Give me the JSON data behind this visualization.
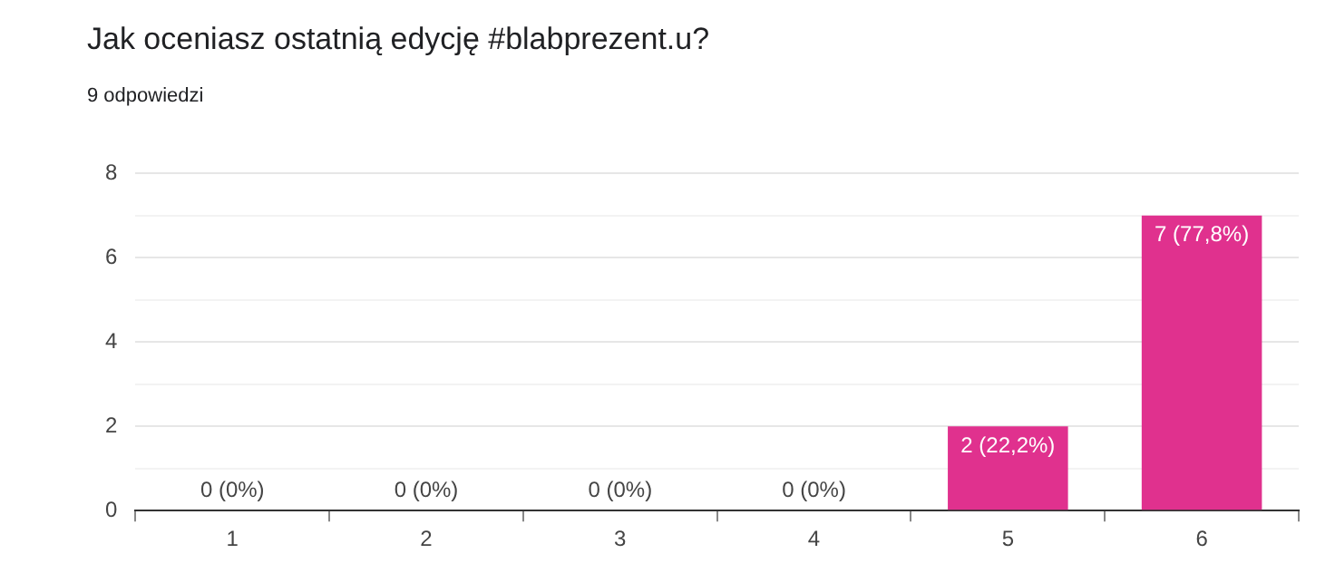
{
  "chart_data": {
    "type": "bar",
    "title": "Jak oceniasz ostatnią edycję #blabprezent.u?",
    "subtitle": "9 odpowiedzi",
    "categories": [
      "1",
      "2",
      "3",
      "4",
      "5",
      "6"
    ],
    "values": [
      0,
      0,
      0,
      0,
      2,
      7
    ],
    "value_labels": [
      "0 (0%)",
      "0 (0%)",
      "0 (0%)",
      "0 (0%)",
      "2 (22,2%)",
      "7 (77,8%)"
    ],
    "color": "#e0318e",
    "ylim": [
      0,
      8
    ],
    "yticks": [
      0,
      {
        "value": 1,
        "label": null
      },
      2,
      {
        "value": 3,
        "label": null
      },
      4,
      {
        "value": 5,
        "label": null
      },
      6,
      {
        "value": 7,
        "label": null
      },
      8
    ],
    "grid": "y"
  }
}
